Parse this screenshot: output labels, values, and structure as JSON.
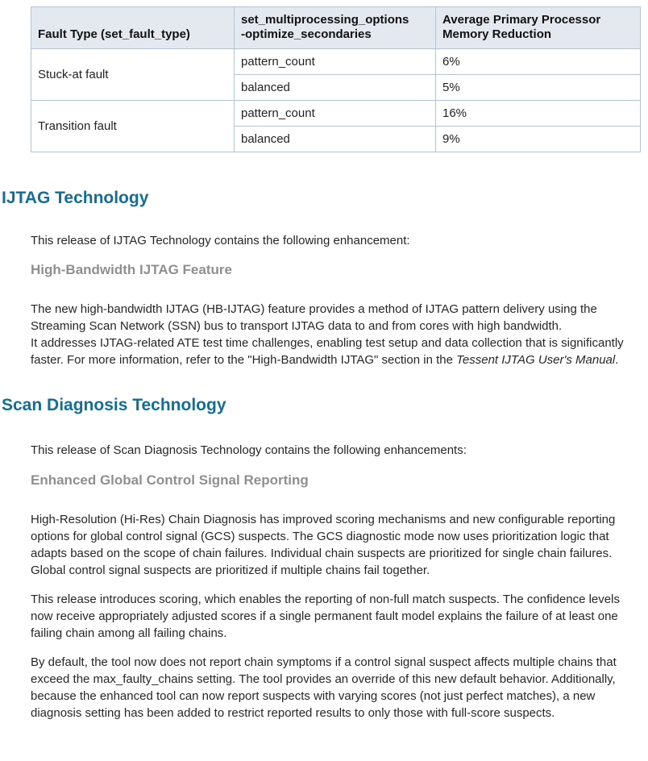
{
  "table": {
    "headers": [
      "Fault Type (set_fault_type)",
      "set_multiprocessing_options\n-optimize_secondaries",
      "Average Primary Processor\nMemory Reduction"
    ],
    "groups": [
      {
        "fault_type": "Stuck-at fault",
        "rows": [
          {
            "option": "pattern_count",
            "reduction": "6%"
          },
          {
            "option": "balanced",
            "reduction": "5%"
          }
        ]
      },
      {
        "fault_type": "Transition fault",
        "rows": [
          {
            "option": "pattern_count",
            "reduction": "16%"
          },
          {
            "option": "balanced",
            "reduction": "9%"
          }
        ]
      }
    ]
  },
  "sections": [
    {
      "title": "IJTAG Technology",
      "intro": "This release of IJTAG Technology contains the following enhancement:",
      "subheading": "High-Bandwidth IJTAG Feature",
      "paragraph": {
        "normal": "The new high-bandwidth IJTAG (HB-IJTAG) feature provides a method of IJTAG pattern delivery using the Streaming Scan Network (SSN) bus to transport IJTAG data to and from cores with high bandwidth.\nIt addresses IJTAG-related ATE test time challenges, enabling test setup and data collection that is significantly faster. For more information, refer to the \"High-Bandwidth IJTAG\" section in the ",
        "italic": "Tessent IJTAG User's Manual",
        "end": "."
      }
    },
    {
      "title": "Scan Diagnosis Technology",
      "intro": "This release of Scan Diagnosis Technology contains the following enhancements:",
      "subheading": "Enhanced Global Control Signal Reporting",
      "paragraphs": [
        "High-Resolution (Hi-Res) Chain Diagnosis has improved scoring mechanisms and new configurable reporting options for global control signal (GCS) suspects. The GCS diagnostic mode now uses prioritization logic that adapts based on the scope of chain failures. Individual chain suspects are prioritized for single chain failures. Global control signal suspects are prioritized if multiple chains fail together.",
        "This release introduces scoring, which enables the reporting of non-full match suspects. The confidence levels now receive appropriately adjusted scores if a single permanent fault model explains the failure of at least one failing chain among all failing chains.",
        "By default, the tool now does not report chain symptoms if a control signal suspect affects multiple chains that exceed the max_faulty_chains setting. The tool provides an override of this new default behavior. Additionally, because the enhanced tool can now report suspects with varying scores (not just perfect matches), a new diagnosis setting has been added to restrict reported results to only those with full-score suspects."
      ]
    }
  ],
  "colors": {
    "heading_blue": "#136e96",
    "subheading_gray": "#8f8f8f",
    "table_header_bg": "#e4e9f0",
    "table_border": "#b7c5d3"
  }
}
